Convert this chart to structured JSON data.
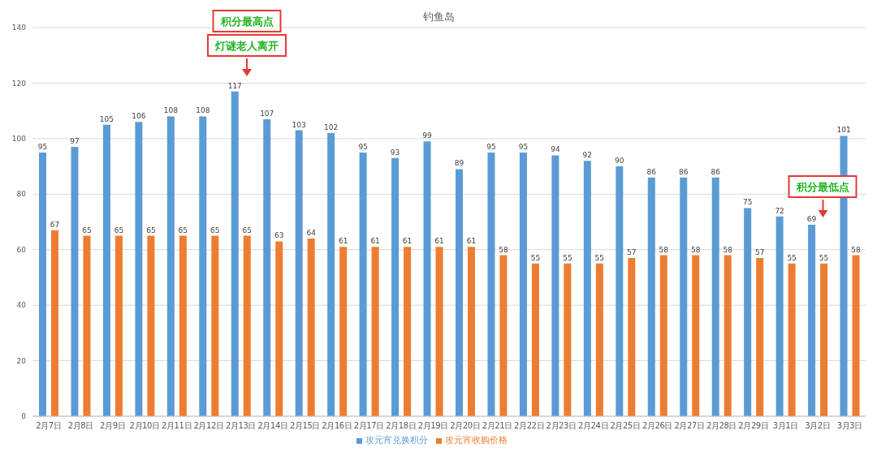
{
  "chart_data": {
    "type": "bar",
    "title": "钓鱼岛",
    "categories": [
      "2月7日",
      "2月8日",
      "2月9日",
      "2月10日",
      "2月11日",
      "2月12日",
      "2月13日",
      "2月14日",
      "2月15日",
      "2月16日",
      "2月17日",
      "2月18日",
      "2月19日",
      "2月20日",
      "2月21日",
      "2月22日",
      "2月23日",
      "2月24日",
      "2月25日",
      "2月26日",
      "2月27日",
      "2月28日",
      "2月29日",
      "3月1日",
      "3月2日",
      "3月3日"
    ],
    "series": [
      {
        "name": "攻元宵兑换积分",
        "color": "#5b9bd5",
        "values": [
          95,
          97,
          105,
          106,
          108,
          108,
          117,
          107,
          103,
          102,
          95,
          93,
          99,
          89,
          95,
          95,
          94,
          92,
          90,
          86,
          86,
          86,
          75,
          72,
          69,
          101
        ]
      },
      {
        "name": "攻元宵收购价格",
        "color": "#ed7d31",
        "values": [
          67,
          65,
          65,
          65,
          65,
          65,
          65,
          63,
          64,
          61,
          61,
          61,
          61,
          61,
          58,
          55,
          55,
          55,
          57,
          58,
          58,
          58,
          57,
          55,
          55,
          58
        ]
      }
    ],
    "ylim": [
      0,
      140
    ],
    "yticks": [
      0,
      20,
      40,
      60,
      80,
      100,
      120,
      140
    ],
    "grid": "y",
    "legend": "bottom",
    "data_labels": true,
    "annotations": [
      "积分最高点",
      "灯谜老人离开",
      "积分最低点"
    ]
  }
}
